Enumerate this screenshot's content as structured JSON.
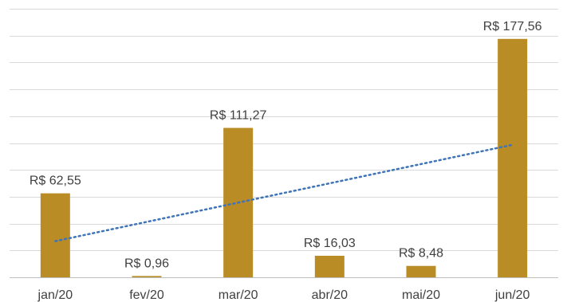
{
  "chart_data": {
    "type": "bar",
    "categories": [
      "jan/20",
      "fev/20",
      "mar/20",
      "abr/20",
      "mai/20",
      "jun/20"
    ],
    "values": [
      62.55,
      0.96,
      111.27,
      16.03,
      8.48,
      177.56
    ],
    "data_labels": [
      "R$ 62,55",
      "R$ 0,96",
      "R$ 111,27",
      "R$ 16,03",
      "R$ 8,48",
      "R$ 177,56"
    ],
    "ylim": [
      0,
      200
    ],
    "grid": true,
    "trendline": {
      "type": "linear",
      "style": "dotted"
    },
    "colors": {
      "bar": "#b98c26",
      "trend": "#3f74b8",
      "grid": "#d9d9d9"
    }
  }
}
